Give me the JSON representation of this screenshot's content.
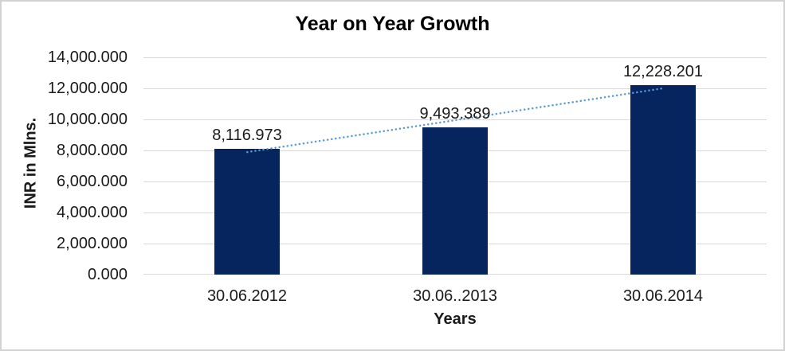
{
  "chart_data": {
    "type": "bar",
    "title": "Year on Year Growth",
    "xlabel": "Years",
    "ylabel": "INR in Mlns.",
    "categories": [
      "30.06.2012",
      "30.06..2013",
      "30.06.2014"
    ],
    "values": [
      8116.973,
      9493.389,
      12228.201
    ],
    "data_labels": [
      "8,116.973",
      "9,493.389",
      "12,228.201"
    ],
    "ylim": [
      0,
      14000
    ],
    "ytick_step": 2000,
    "ytick_labels": [
      "0.000",
      "2,000.000",
      "4,000.000",
      "6,000.000",
      "8,000.000",
      "10,000.000",
      "12,000.000",
      "14,000.000"
    ],
    "grid": true,
    "legend": "none",
    "bar_color": "#06245e",
    "grid_color": "#d9d9d9",
    "trendline": {
      "type": "linear",
      "style": "dotted",
      "color": "#5b9bd5"
    }
  }
}
